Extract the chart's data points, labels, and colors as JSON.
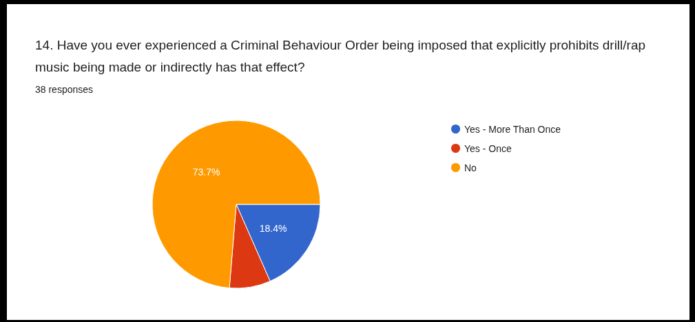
{
  "chart_data": {
    "type": "pie",
    "title": "14. Have you ever experienced a Criminal Behaviour Order being imposed that explicitly prohibits drill/rap music being made or indirectly has that effect?",
    "subtitle": "38 responses",
    "categories": [
      "Yes - More Than Once",
      "Yes - Once",
      "No"
    ],
    "values": [
      18.4,
      7.9,
      73.7
    ],
    "value_labels": [
      "18.4%",
      null,
      "73.7%"
    ],
    "colors": [
      "#3366cc",
      "#dc3912",
      "#ff9900"
    ],
    "legend": "right"
  }
}
